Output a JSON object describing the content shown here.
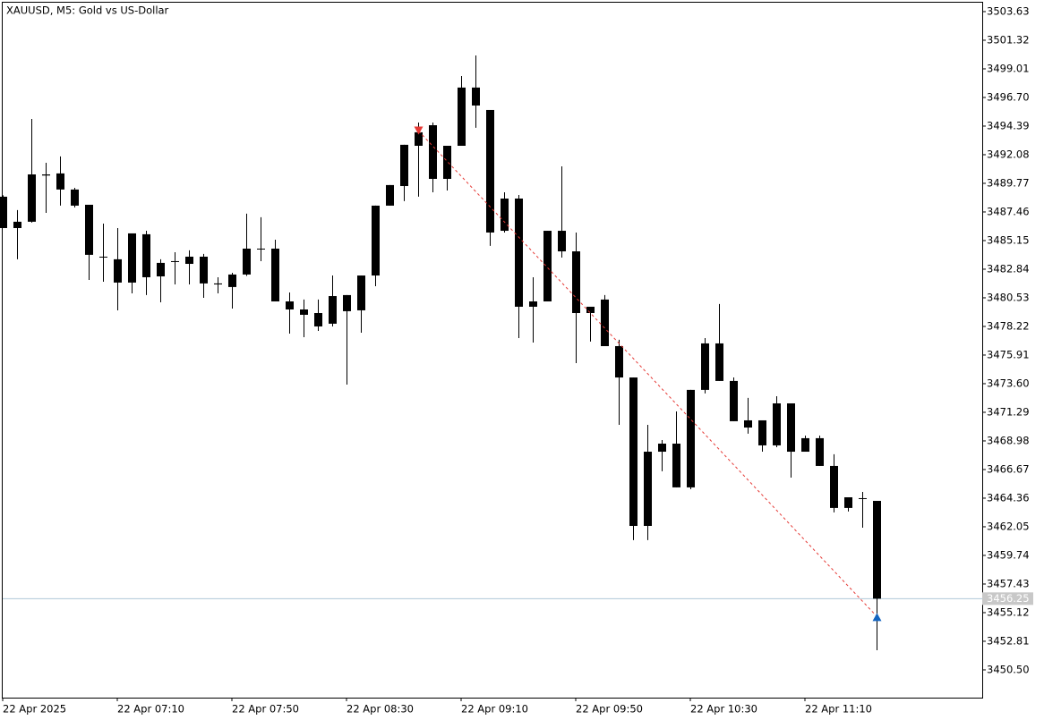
{
  "chart_data": {
    "type": "candlestick",
    "title": "XAUUSD, M5:  Gold vs US-Dollar",
    "categories": [
      "22 Apr 2025",
      null,
      null,
      null,
      null,
      null,
      null,
      null,
      "22 Apr 07:10",
      null,
      null,
      null,
      null,
      null,
      null,
      null,
      "22 Apr 07:50",
      null,
      null,
      null,
      null,
      null,
      null,
      null,
      "22 Apr 08:30",
      null,
      null,
      null,
      null,
      null,
      null,
      null,
      "22 Apr 09:10",
      null,
      null,
      null,
      null,
      null,
      null,
      null,
      "22 Apr 09:50",
      null,
      null,
      null,
      null,
      null,
      null,
      null,
      "22 Apr 10:30",
      null,
      null,
      null,
      null,
      null,
      null,
      null,
      "22 Apr 11:10",
      null,
      null,
      null,
      null,
      null
    ],
    "open": [
      3488.69,
      3486.16,
      3486.67,
      3490.4,
      3490.57,
      3489.27,
      3488.04,
      3483.8,
      3483.64,
      3481.76,
      3485.66,
      3482.26,
      3483.45,
      3483.27,
      3483.85,
      3481.69,
      3481.4,
      3482.41,
      3484.45,
      3484.5,
      3480.24,
      3479.59,
      3479.3,
      3478.44,
      3479.45,
      3479.52,
      3482.33,
      3487.97,
      3489.55,
      3492.8,
      3494.46,
      3490.13,
      3492.8,
      3497.5,
      3495.69,
      3485.94,
      3488.54,
      3479.81,
      3480.24,
      3485.94,
      3484.28,
      3479.3,
      3480.39,
      3476.63,
      3474.1,
      3462.12,
      3468.11,
      3468.76,
      3465.23,
      3473.1,
      3476.85,
      3473.82,
      3470.64,
      3470.64,
      3468.62,
      3472.01,
      3468.11,
      3469.2,
      3466.96,
      3463.57,
      3464.3,
      3464.14
    ],
    "high": [
      3488.8,
      3487.61,
      3494.97,
      3491.43,
      3491.94,
      3489.41,
      3488.04,
      3486.52,
      3486.16,
      3485.73,
      3485.94,
      3483.64,
      3484.21,
      3484.36,
      3484.07,
      3482.19,
      3482.55,
      3487.32,
      3487.03,
      3485.22,
      3480.96,
      3480.39,
      3480.39,
      3482.33,
      3480.75,
      3482.33,
      3487.97,
      3489.63,
      3492.88,
      3494.68,
      3494.68,
      3492.8,
      3498.43,
      3500.09,
      3495.69,
      3489.05,
      3488.83,
      3482.19,
      3485.94,
      3491.14,
      3485.8,
      3479.81,
      3480.75,
      3477.14,
      3474.1,
      3470.28,
      3469.05,
      3471.36,
      3473.1,
      3477.28,
      3480.03,
      3474.1,
      3472.45,
      3470.64,
      3472.59,
      3472.01,
      3469.41,
      3469.41,
      3467.9,
      3464.43,
      3464.86,
      3464.14
    ],
    "low": [
      3486.16,
      3483.64,
      3486.6,
      3487.39,
      3487.97,
      3487.82,
      3481.97,
      3481.83,
      3479.52,
      3480.89,
      3480.75,
      3480.17,
      3481.61,
      3481.61,
      3480.53,
      3480.89,
      3479.66,
      3482.3,
      3483.49,
      3480.24,
      3477.64,
      3477.35,
      3477.86,
      3478.22,
      3473.53,
      3477.71,
      3481.47,
      3487.97,
      3488.33,
      3488.69,
      3489.05,
      3489.19,
      3492.8,
      3494.25,
      3484.72,
      3485.8,
      3477.28,
      3476.92,
      3480.24,
      3483.78,
      3475.26,
      3477.0,
      3476.63,
      3470.28,
      3460.97,
      3460.97,
      3466.53,
      3465.23,
      3465.08,
      3472.81,
      3473.82,
      3470.57,
      3469.56,
      3468.11,
      3468.47,
      3466.02,
      3468.11,
      3466.96,
      3463.21,
      3463.28,
      3461.98,
      3452.09
    ],
    "close": [
      3486.16,
      3486.67,
      3490.49,
      3490.49,
      3489.27,
      3487.97,
      3484.0,
      3483.85,
      3481.76,
      3485.73,
      3482.19,
      3483.35,
      3483.49,
      3483.85,
      3481.69,
      3481.61,
      3482.41,
      3484.5,
      3484.5,
      3480.24,
      3479.59,
      3479.16,
      3478.22,
      3480.67,
      3480.75,
      3482.33,
      3487.97,
      3489.63,
      3492.88,
      3493.89,
      3490.13,
      3492.8,
      3497.5,
      3496.05,
      3485.8,
      3488.54,
      3479.81,
      3480.24,
      3485.94,
      3484.28,
      3479.3,
      3479.81,
      3476.63,
      3474.1,
      3462.12,
      3468.11,
      3468.76,
      3465.23,
      3473.1,
      3476.85,
      3473.82,
      3470.57,
      3470.06,
      3468.62,
      3472.01,
      3468.11,
      3469.2,
      3466.96,
      3463.57,
      3464.43,
      3464.36,
      3456.25
    ],
    "color": "#000000",
    "ylim": [
      3448.26,
      3504.35
    ],
    "yticks": [
      3503.63,
      3501.32,
      3499.01,
      {
        "value": 3496.7,
        "label": "3496.70"
      },
      3494.39,
      3492.08,
      3489.77,
      3487.46,
      3485.15,
      3482.84,
      3480.53,
      3478.22,
      3475.91,
      {
        "value": 3473.6,
        "label": "3473.60"
      },
      3471.29,
      3468.98,
      3466.67,
      3464.36,
      3462.05,
      3459.74,
      3457.43,
      3455.12,
      3452.81,
      {
        "value": 3450.5,
        "label": "3450.50"
      }
    ],
    "current_price": 3456.25,
    "trade": {
      "open_price": 3493.99,
      "close_price": 3454.8,
      "sell_color": "#e53935",
      "buy_color": "#1565c0"
    }
  }
}
